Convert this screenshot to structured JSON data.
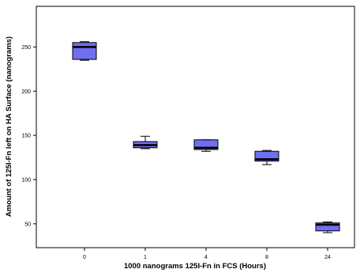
{
  "chart_data": {
    "type": "boxplot",
    "title": "",
    "xlabel": "1000 nanograms 125I-Fn in FCS (Hours)",
    "ylabel": "Amount of 125I-Fn left on HA Surface (nanograms)",
    "categories": [
      "0",
      "1",
      "4",
      "8",
      "24"
    ],
    "ylim": [
      23,
      296
    ],
    "yticks": [
      50,
      100,
      150,
      200,
      250
    ],
    "boxes": [
      {
        "category": "0",
        "min": 235,
        "q1": 236,
        "median": 250,
        "q3": 255,
        "max": 256
      },
      {
        "category": "1",
        "min": 135,
        "q1": 136,
        "median": 139,
        "q3": 143,
        "max": 149
      },
      {
        "category": "4",
        "min": 132,
        "q1": 134,
        "median": 136,
        "q3": 145,
        "max": 145
      },
      {
        "category": "8",
        "min": 117,
        "q1": 121,
        "median": 123,
        "q3": 132,
        "max": 133
      },
      {
        "category": "24",
        "min": 40,
        "q1": 42,
        "median": 49,
        "q3": 51,
        "max": 52
      }
    ],
    "box_color": "#6f6ff0",
    "grid": false,
    "legend": "none"
  }
}
